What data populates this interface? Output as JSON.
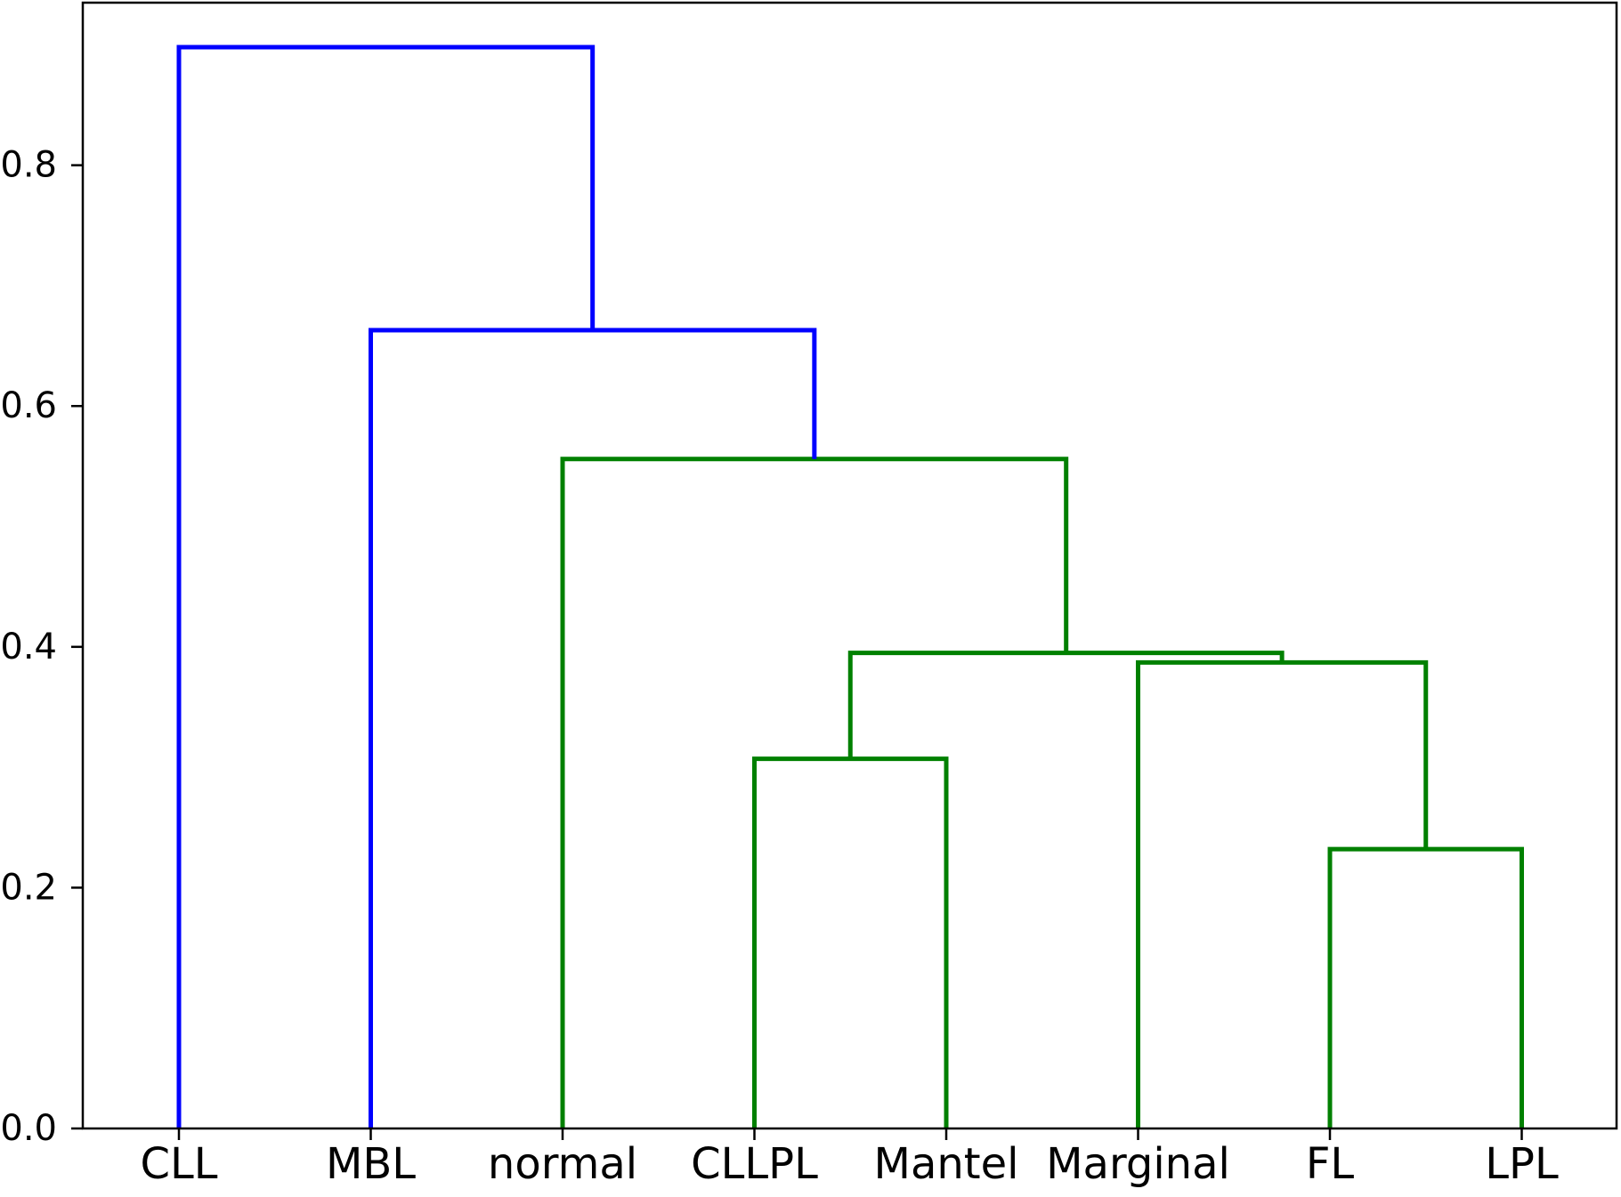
{
  "chart_data": {
    "type": "dendrogram",
    "title": "",
    "xlabel": "",
    "ylabel": "",
    "ylim": [
      0,
      0.935
    ],
    "yticks": [
      0.0,
      0.2,
      0.4,
      0.6,
      0.8
    ],
    "ytick_labels": [
      "0.0",
      "0.2",
      "0.4",
      "0.6",
      "0.8"
    ],
    "grid": false,
    "leaves": [
      "CLL",
      "MBL",
      "normal",
      "CLLPL",
      "Mantel",
      "Marginal",
      "FL",
      "LPL"
    ],
    "links": [
      {
        "left": [
          3,
          0
        ],
        "right": [
          4,
          0
        ],
        "height": 0.307,
        "color": "#008000"
      },
      {
        "left": [
          6,
          0
        ],
        "right": [
          7,
          0
        ],
        "height": 0.232,
        "color": "#008000"
      },
      {
        "left": [
          5,
          0
        ],
        "right": [
          6.5,
          0.232
        ],
        "height": 0.387,
        "color": "#008000"
      },
      {
        "left": [
          3.5,
          0.307
        ],
        "right": [
          5.75,
          0.387
        ],
        "height": 0.395,
        "color": "#008000"
      },
      {
        "left": [
          2,
          0
        ],
        "right": [
          4.625,
          0.395
        ],
        "height": 0.556,
        "color": "#008000"
      },
      {
        "left": [
          1,
          0
        ],
        "right": [
          3.3125,
          0.556
        ],
        "height": 0.663,
        "color": "#0000ff"
      },
      {
        "left": [
          0,
          0
        ],
        "right": [
          2.15625,
          0.663
        ],
        "height": 0.898,
        "color": "#0000ff"
      }
    ]
  }
}
